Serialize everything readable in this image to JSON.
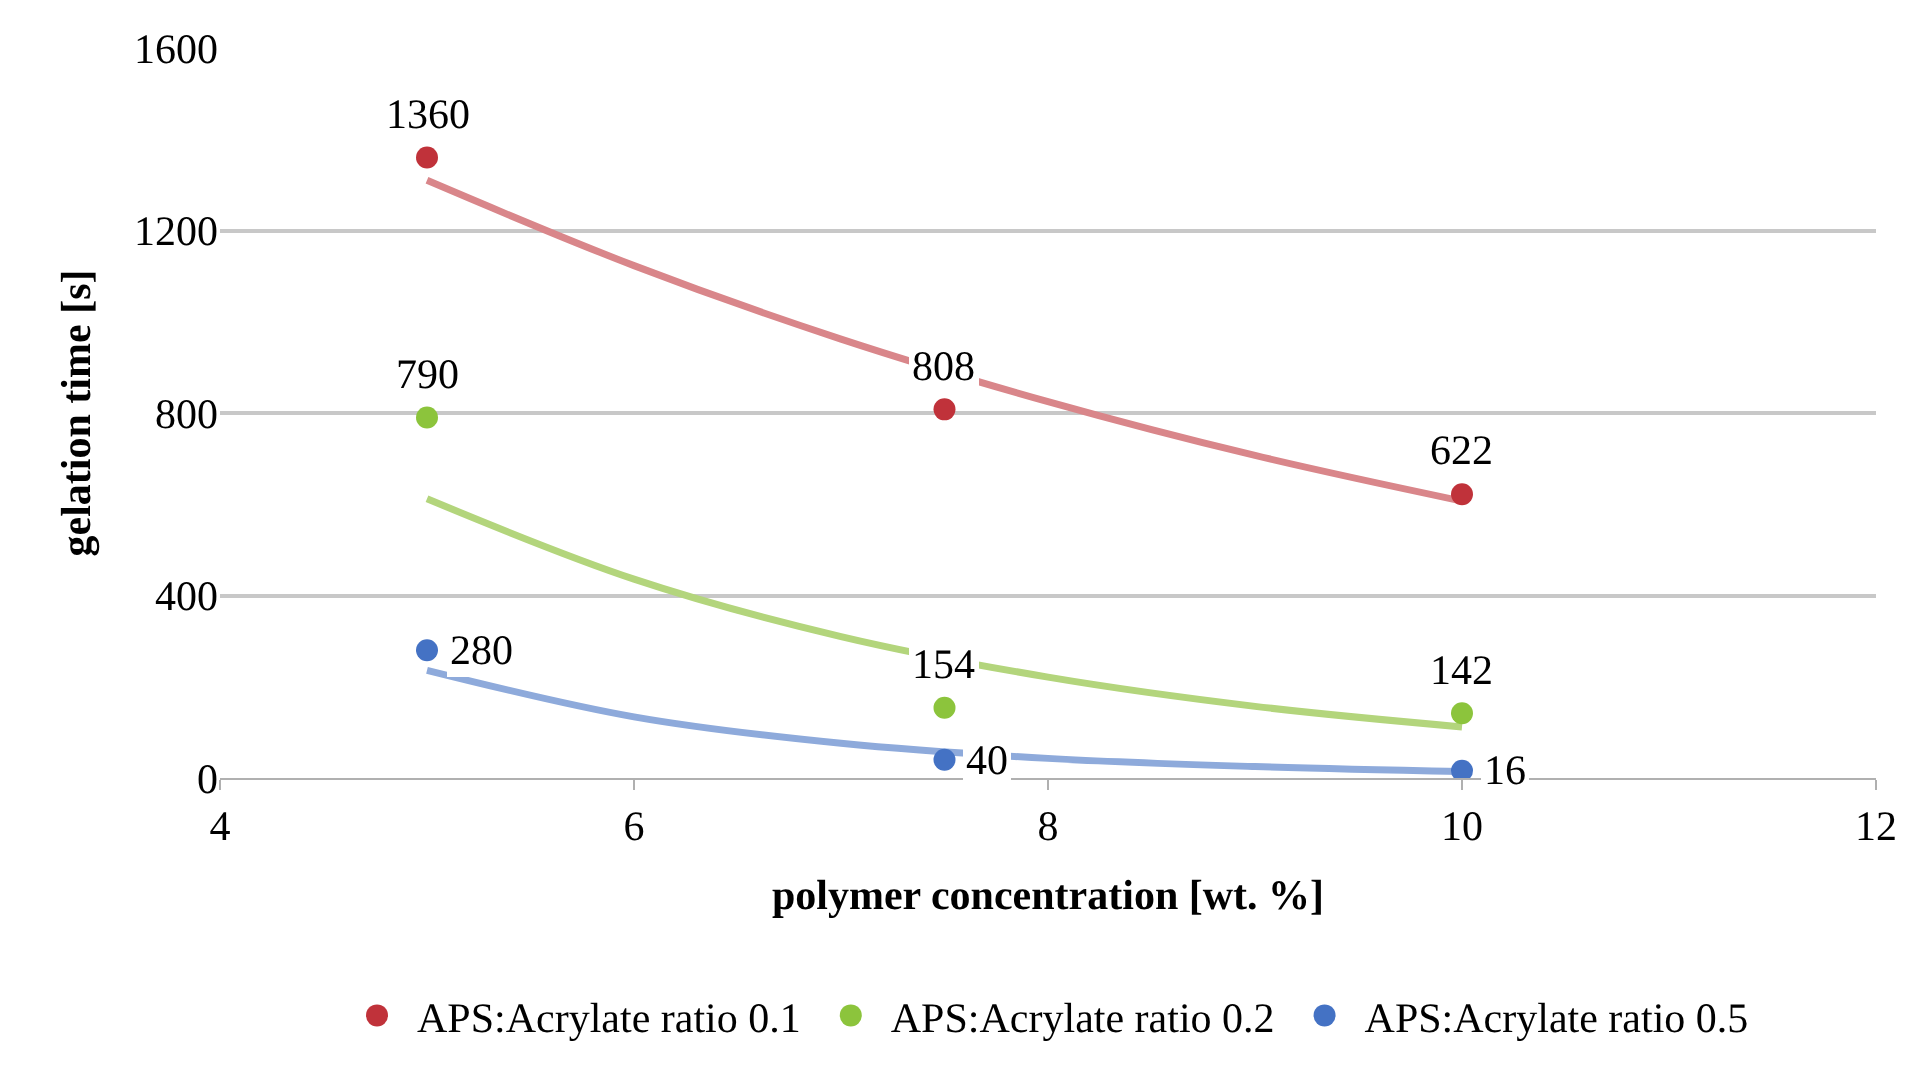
{
  "chart_data": {
    "type": "scatter",
    "xlabel": "polymer concentration [wt. %]",
    "ylabel": "gelation time [s]",
    "xlim": [
      4,
      12
    ],
    "xticks": [
      4,
      6,
      8,
      10,
      12
    ],
    "ylim": [
      0,
      1600
    ],
    "yticks": [
      0,
      400,
      800,
      1200,
      1600
    ],
    "grid": "y",
    "legend": "bottom",
    "marker": "circle",
    "series": [
      {
        "name": "APS:Acrylate ratio 0.1",
        "color": "#c0323a",
        "x": [
          5,
          7.5,
          10
        ],
        "values": [
          1360,
          808,
          622
        ],
        "value_labels": [
          "1360",
          "808",
          "622"
        ]
      },
      {
        "name": "APS:Acrylate ratio 0.2",
        "color": "#8cc43c",
        "x": [
          5,
          7.5,
          10
        ],
        "values": [
          790,
          154,
          142
        ],
        "value_labels": [
          "790",
          "154",
          "142"
        ]
      },
      {
        "name": "APS:Acrylate ratio 0.5",
        "color": "#4472c4",
        "x": [
          5,
          7.5,
          10
        ],
        "values": [
          280,
          40,
          16
        ],
        "value_labels": [
          "280",
          "40",
          "16"
        ]
      },
      {
        "type": "line",
        "marker": "none",
        "color": "#d9868a",
        "x": [
          5,
          6,
          7,
          8,
          9,
          10
        ],
        "values": [
          1310,
          1123,
          962,
          825,
          707,
          607
        ]
      },
      {
        "type": "line",
        "marker": "none",
        "color": "#b3d57c",
        "x": [
          5,
          6,
          7,
          8,
          9,
          10
        ],
        "values": [
          612,
          436,
          310,
          221,
          157,
          112
        ]
      },
      {
        "type": "line",
        "marker": "none",
        "color": "#8eaadb",
        "x": [
          5,
          6,
          7,
          8,
          9,
          10
        ],
        "values": [
          236,
          134,
          76,
          43,
          25,
          14
        ]
      }
    ]
  }
}
